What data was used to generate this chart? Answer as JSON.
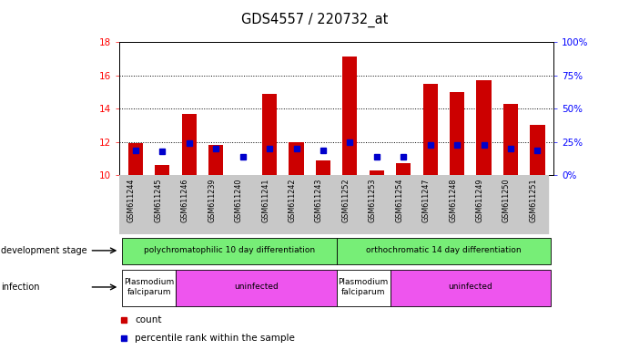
{
  "title": "GDS4557 / 220732_at",
  "samples": [
    "GSM611244",
    "GSM611245",
    "GSM611246",
    "GSM611239",
    "GSM611240",
    "GSM611241",
    "GSM611242",
    "GSM611243",
    "GSM611252",
    "GSM611253",
    "GSM611254",
    "GSM611247",
    "GSM611248",
    "GSM611249",
    "GSM611250",
    "GSM611251"
  ],
  "count_values": [
    11.9,
    10.6,
    13.7,
    11.8,
    10.0,
    14.9,
    12.0,
    10.9,
    17.1,
    10.3,
    10.7,
    15.5,
    15.0,
    15.7,
    14.3,
    13.0
  ],
  "percentile_values": [
    11.5,
    11.4,
    11.9,
    11.6,
    11.1,
    11.6,
    11.6,
    11.5,
    12.0,
    11.1,
    11.1,
    11.8,
    11.8,
    11.8,
    11.6,
    11.5
  ],
  "ymin": 10,
  "ymax": 18,
  "yticks": [
    10,
    12,
    14,
    16,
    18
  ],
  "right_yticks": [
    0,
    25,
    50,
    75,
    100
  ],
  "bar_color": "#cc0000",
  "percentile_color": "#0000cc",
  "bar_bottom": 10,
  "grid_lines": [
    12,
    14,
    16
  ],
  "dev_stage_groups": [
    {
      "label": "polychromatophilic 10 day differentiation",
      "start": 0,
      "end": 8,
      "color": "#77ee77"
    },
    {
      "label": "orthochromatic 14 day differentiation",
      "start": 8,
      "end": 16,
      "color": "#77ee77"
    }
  ],
  "infection_groups": [
    {
      "label": "Plasmodium\nfalciparum",
      "start": 0,
      "end": 2,
      "color": "#ffffff"
    },
    {
      "label": "uninfected",
      "start": 2,
      "end": 8,
      "color": "#ee55ee"
    },
    {
      "label": "Plasmodium\nfalciparum",
      "start": 8,
      "end": 10,
      "color": "#ffffff"
    },
    {
      "label": "uninfected",
      "start": 10,
      "end": 16,
      "color": "#ee55ee"
    }
  ],
  "legend_items": [
    {
      "label": "count",
      "color": "#cc0000"
    },
    {
      "label": "percentile rank within the sample",
      "color": "#0000cc"
    }
  ]
}
